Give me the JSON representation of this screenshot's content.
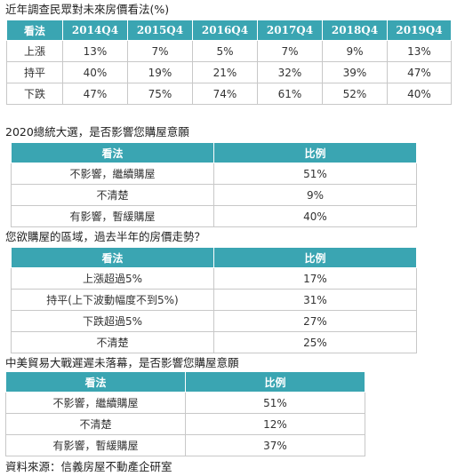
{
  "table1": {
    "title": "近年調查民眾對未來房價看法(%)",
    "header": [
      "看法",
      "2014Q4",
      "2015Q4",
      "2016Q4",
      "2017Q4",
      "2018Q4",
      "2019Q4"
    ],
    "rows": [
      [
        "上漲",
        "13%",
        "7%",
        "5%",
        "7%",
        "9%",
        "13%"
      ],
      [
        "持平",
        "40%",
        "19%",
        "21%",
        "32%",
        "39%",
        "47%"
      ],
      [
        "下跌",
        "47%",
        "75%",
        "74%",
        "61%",
        "52%",
        "40%"
      ]
    ]
  },
  "table2": {
    "title": "2020總統大選，是否影響您購屋意願",
    "header": [
      "看法",
      "比例"
    ],
    "rows": [
      [
        "不影響，繼續購屋",
        "51%"
      ],
      [
        "不清楚",
        "9%"
      ],
      [
        "有影響，暫緩購屋",
        "40%"
      ]
    ]
  },
  "table3": {
    "title": "您欲購屋的區域，過去半年的房價走勢？",
    "header": [
      "看法",
      "比例"
    ],
    "rows": [
      [
        "上漲超過5%",
        "17%"
      ],
      [
        "持平(上下波動幅度不到5%)",
        "31%"
      ],
      [
        "下跌超過5%",
        "27%"
      ],
      [
        "不清楚",
        "25%"
      ]
    ]
  },
  "table4": {
    "title": "中美貿易大戰遲遲未落幕，是否影響您購屋意願",
    "header": [
      "看法",
      "比例"
    ],
    "rows": [
      [
        "不影響，繼續購屋",
        "51%"
      ],
      [
        "不清楚",
        "12%"
      ],
      [
        "有影響，暫緩購屋",
        "37%"
      ]
    ]
  },
  "source": "資料來源：信義房屋不動產企研室",
  "colors": {
    "header_bg": "#3aa5b2",
    "header_text": "#ffffff",
    "border": "#c8c8c8"
  }
}
